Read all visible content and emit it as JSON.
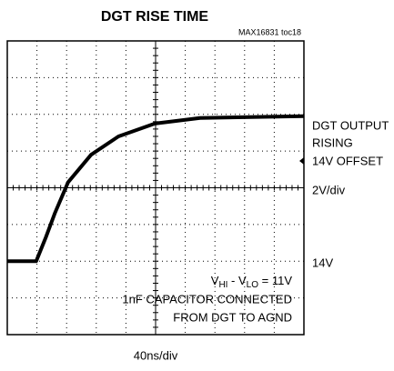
{
  "chart_data": {
    "type": "line",
    "title": "DGT RISE TIME",
    "subtitle": "MAX16831 toc18",
    "x": [
      0,
      39,
      52,
      64,
      82,
      113,
      150,
      199,
      260,
      400
    ],
    "series": [
      {
        "color": "#000000",
        "values": [
          14,
          14,
          15.3,
          16.6,
          18.3,
          19.8,
          20.8,
          21.5,
          21.8,
          21.9
        ]
      }
    ],
    "xlim": [
      0,
      400
    ],
    "ylim": [
      10,
      26
    ],
    "right_labels": [
      "DGT OUTPUT",
      "RISING",
      "14V OFFSET",
      "2V/div"
    ],
    "level_label": "14V",
    "annotation": {
      "parts": [
        "V",
        "HI",
        " - V",
        "LO",
        " = 11V"
      ],
      "lines": [
        "1nF CAPACITOR CONNECTED",
        "FROM DGT TO AGND"
      ]
    },
    "x_label": "40ns/div"
  }
}
